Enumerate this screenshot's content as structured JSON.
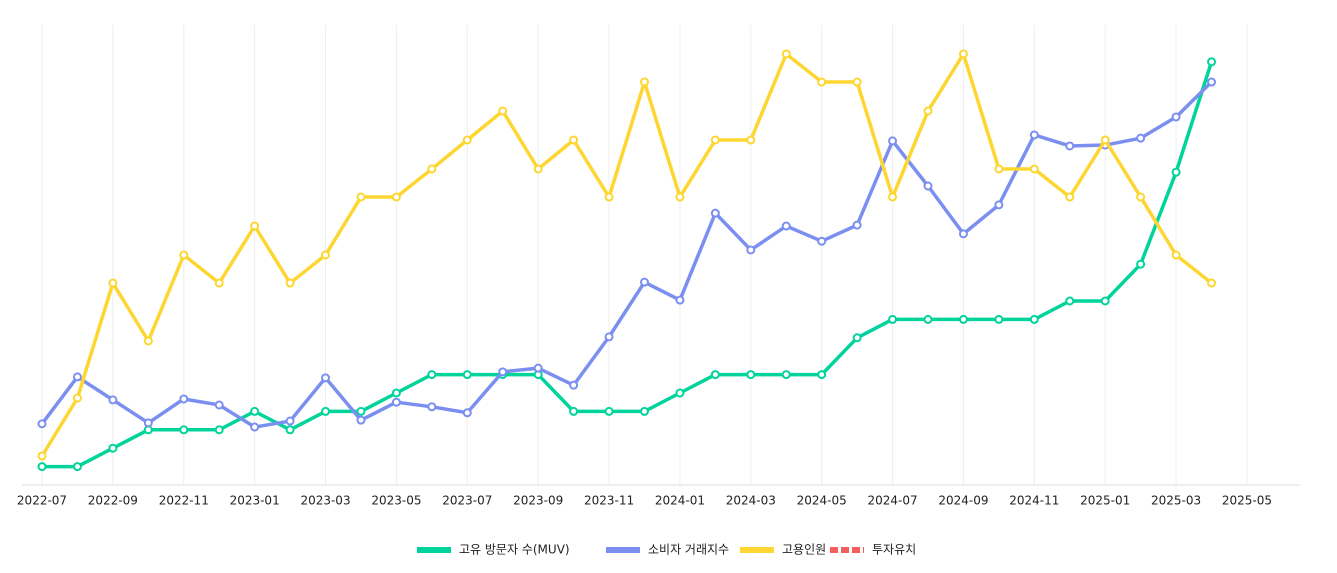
{
  "chart_data": {
    "type": "line",
    "categories": [
      "2022-07",
      null,
      "2022-09",
      null,
      "2022-11",
      null,
      "2023-01",
      null,
      "2023-03",
      null,
      "2023-05",
      null,
      "2023-07",
      null,
      "2023-09",
      null,
      "2023-11",
      null,
      "2024-01",
      null,
      "2024-03",
      null,
      "2024-05",
      null,
      "2024-07",
      null,
      "2024-09",
      null,
      "2024-11",
      null,
      "2025-01",
      null,
      "2025-03",
      null,
      "2025-05"
    ],
    "series": [
      {
        "name": "고유 방문자 수(MUV)",
        "color": "#00d49a",
        "values": [
          4,
          4,
          8,
          12,
          12,
          12,
          16,
          12,
          16,
          16,
          20,
          24,
          24,
          24,
          24,
          16,
          16,
          16,
          20,
          24,
          24,
          24,
          24,
          32,
          36,
          36,
          36,
          36,
          36,
          40,
          40,
          48,
          68,
          92,
          null
        ]
      },
      {
        "name": "소비자 거래지수",
        "color": "#7b8ff0",
        "values": [
          13.3,
          23.5,
          18.5,
          13.5,
          18.7,
          17.4,
          12.6,
          13.9,
          23.3,
          14.1,
          18,
          17,
          15.7,
          24.6,
          25.4,
          21.7,
          32.2,
          44.1,
          40.2,
          59.1,
          51.1,
          56.3,
          53,
          56.5,
          74.8,
          65,
          54.6,
          60.9,
          76.1,
          73.7,
          73.9,
          75.4,
          80,
          87.6,
          null
        ]
      },
      {
        "name": "고용인원",
        "color": "#fdd631",
        "values": [
          6.3,
          18.9,
          43.9,
          31.3,
          50,
          43.9,
          56.3,
          43.9,
          50,
          62.6,
          62.6,
          68.7,
          75,
          81.3,
          68.7,
          75,
          62.6,
          87.6,
          62.6,
          75,
          75,
          93.7,
          87.6,
          87.6,
          62.6,
          81.3,
          93.7,
          68.7,
          68.7,
          62.6,
          75,
          62.6,
          50,
          43.9,
          null
        ]
      },
      {
        "name": "투자유치",
        "color": "#f25f5c",
        "dashed": true,
        "values": [
          null,
          null,
          null,
          null,
          null,
          null,
          null,
          null,
          null,
          null,
          null,
          null,
          null,
          null,
          null,
          null,
          null,
          null,
          null,
          null,
          null,
          null,
          null,
          null,
          null,
          null,
          null,
          null,
          null,
          null,
          null,
          null,
          null,
          null,
          null
        ]
      }
    ],
    "ylim": [
      0,
      100
    ],
    "grid": true,
    "legend": "bottom"
  }
}
